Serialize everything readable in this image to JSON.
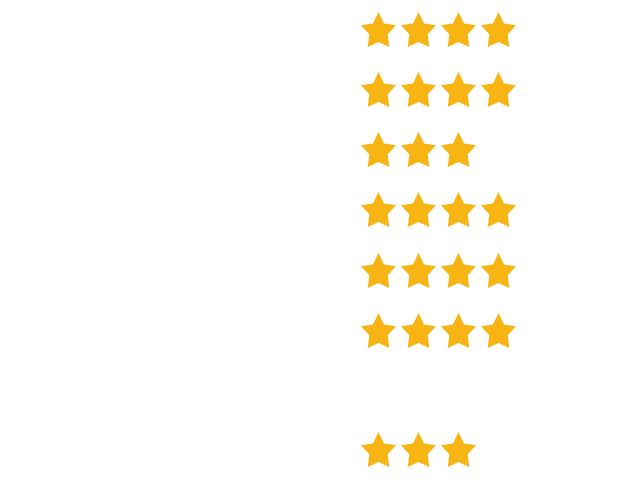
{
  "star_color": "#F7B413",
  "star_icon": "star-icon",
  "ratings": [
    {
      "stars": 4
    },
    {
      "stars": 4
    },
    {
      "stars": 3
    },
    {
      "stars": 4
    },
    {
      "stars": 4
    },
    {
      "stars": 4
    },
    {
      "stars": 0
    },
    {
      "stars": 3
    }
  ]
}
